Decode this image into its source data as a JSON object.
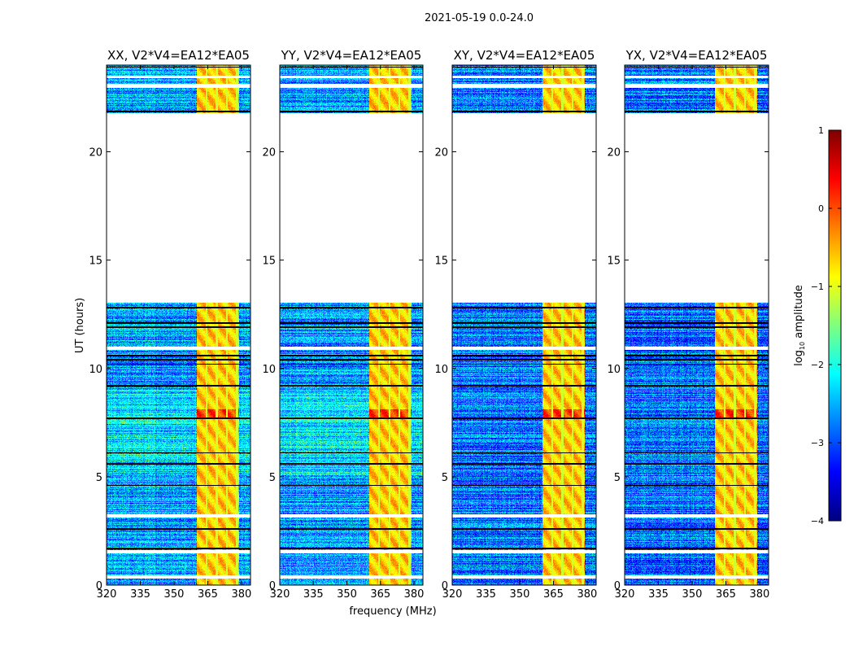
{
  "chart_data": {
    "type": "heatmap",
    "suptitle": "2021-05-19 0.0-24.0",
    "xlabel": "frequency (MHz)",
    "ylabel": "UT (hours)",
    "xlim": [
      320,
      384
    ],
    "ylim": [
      0,
      24
    ],
    "xticks": [
      "320",
      "335",
      "350",
      "365",
      "380"
    ],
    "xtick_values": [
      320,
      335,
      350,
      365,
      380
    ],
    "yticks": [
      "0",
      "5",
      "10",
      "15",
      "20"
    ],
    "ytick_values": [
      0,
      5,
      10,
      15,
      20
    ],
    "panels": [
      {
        "title": "XX, V2*V4=EA12*EA05"
      },
      {
        "title": "YY, V2*V4=EA12*EA05"
      },
      {
        "title": "XY, V2*V4=EA12*EA05"
      },
      {
        "title": "YX, V2*V4=EA12*EA05"
      }
    ],
    "colorbar": {
      "label": "log10 amplitude",
      "label_main": "log",
      "label_sub": "10",
      "label_rest": " amplitude",
      "range": [
        -4,
        1
      ],
      "ticks": [
        "1",
        "0",
        "−1",
        "−2",
        "−3",
        "−4"
      ],
      "tick_values": [
        1,
        0,
        -1,
        -2,
        -3,
        -4
      ],
      "colormap": "jet"
    },
    "model": {
      "background_log_amp": -2.6,
      "rfi_band_mhz": [
        360,
        379
      ],
      "rfi_band_log_amp": -0.6,
      "rfi_channel_edges_mhz": [
        364.5,
        369,
        373.5,
        378
      ],
      "no_data_hours": [
        [
          0.3,
          0.45
        ],
        [
          1.45,
          1.6
        ],
        [
          3.1,
          3.25
        ],
        [
          10.85,
          11.0
        ],
        [
          13.05,
          21.8
        ],
        [
          22.95,
          23.15
        ],
        [
          23.4,
          23.5
        ]
      ],
      "flag_lines_hours": [
        1.7,
        2.6,
        4.6,
        5.6,
        6.1,
        7.7,
        9.2,
        10.2,
        10.4,
        10.6,
        11.9,
        12.1,
        12.8,
        21.85,
        23.9
      ]
    }
  }
}
